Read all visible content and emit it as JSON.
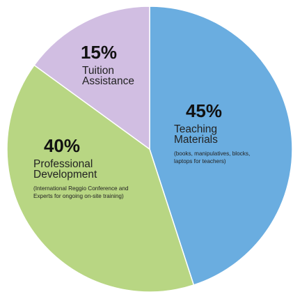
{
  "chart_data": {
    "type": "pie",
    "slices": [
      {
        "value": 45,
        "percent_label": "45%",
        "label_lines": [
          "Teaching",
          "Materials"
        ],
        "note_lines": [
          "(books, manipulatives, blocks,",
          "laptops for teachers)"
        ],
        "color": "#6aade0"
      },
      {
        "value": 40,
        "percent_label": "40%",
        "label_lines": [
          "Professional",
          "Development"
        ],
        "note_lines": [
          "(International Reggio Conference and",
          "Experts for ongoing on-site training)"
        ],
        "color": "#b8d683"
      },
      {
        "value": 15,
        "percent_label": "15%",
        "label_lines": [
          "Tuition",
          "Assistance"
        ],
        "note_lines": [],
        "color": "#d1bee2"
      }
    ],
    "start_angle": "12 o'clock",
    "direction": "clockwise",
    "legend": "none"
  }
}
